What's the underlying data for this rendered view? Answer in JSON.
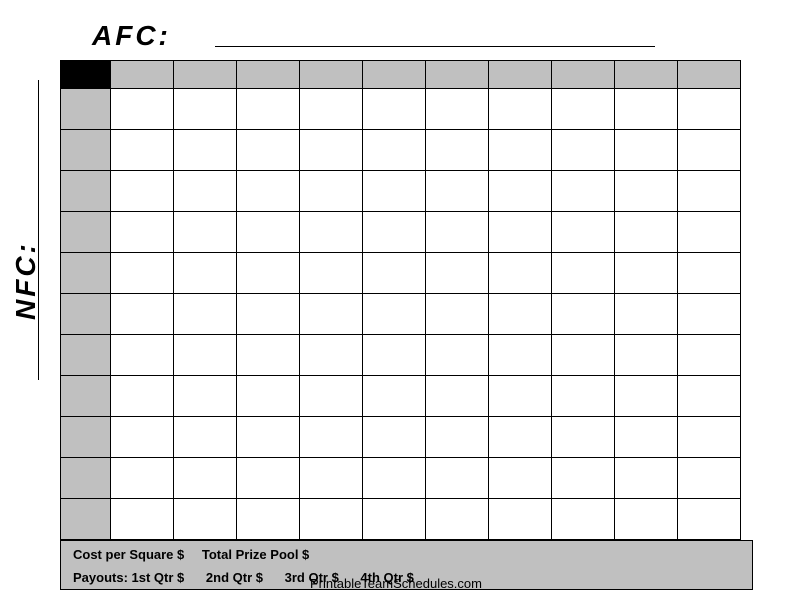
{
  "afc": {
    "label": "AFC:"
  },
  "nfc": {
    "label": "NFC:"
  },
  "grid": {
    "cols": 10,
    "rows": 10,
    "grid_cell_width": 63,
    "grid_cell_height": 41,
    "header_row_height": 28,
    "header_col_width": 50,
    "corner_bg": "#000000",
    "header_bg": "#c0c0c0",
    "cell_bg": "#ffffff",
    "border_color": "#000000"
  },
  "info": {
    "cost_label": "Cost per Square $",
    "pool_label": "Total Prize Pool $",
    "payouts_label": "Payouts:",
    "q1": "1st Qtr $",
    "q2": "2nd Qtr $",
    "q3": "3rd Qtr $",
    "q4": "4th Qtr $",
    "bg": "#c0c0c0",
    "font_size": 13,
    "font_weight": "bold"
  },
  "footer": {
    "text": "PrintableTeamSchedules.com",
    "font_size": 13
  },
  "colors": {
    "page_bg": "#ffffff",
    "text": "#000000"
  },
  "typography": {
    "header_font": "Arial Black",
    "header_size": 28,
    "header_weight": 900,
    "header_letter_spacing": 3,
    "body_font": "Arial"
  }
}
